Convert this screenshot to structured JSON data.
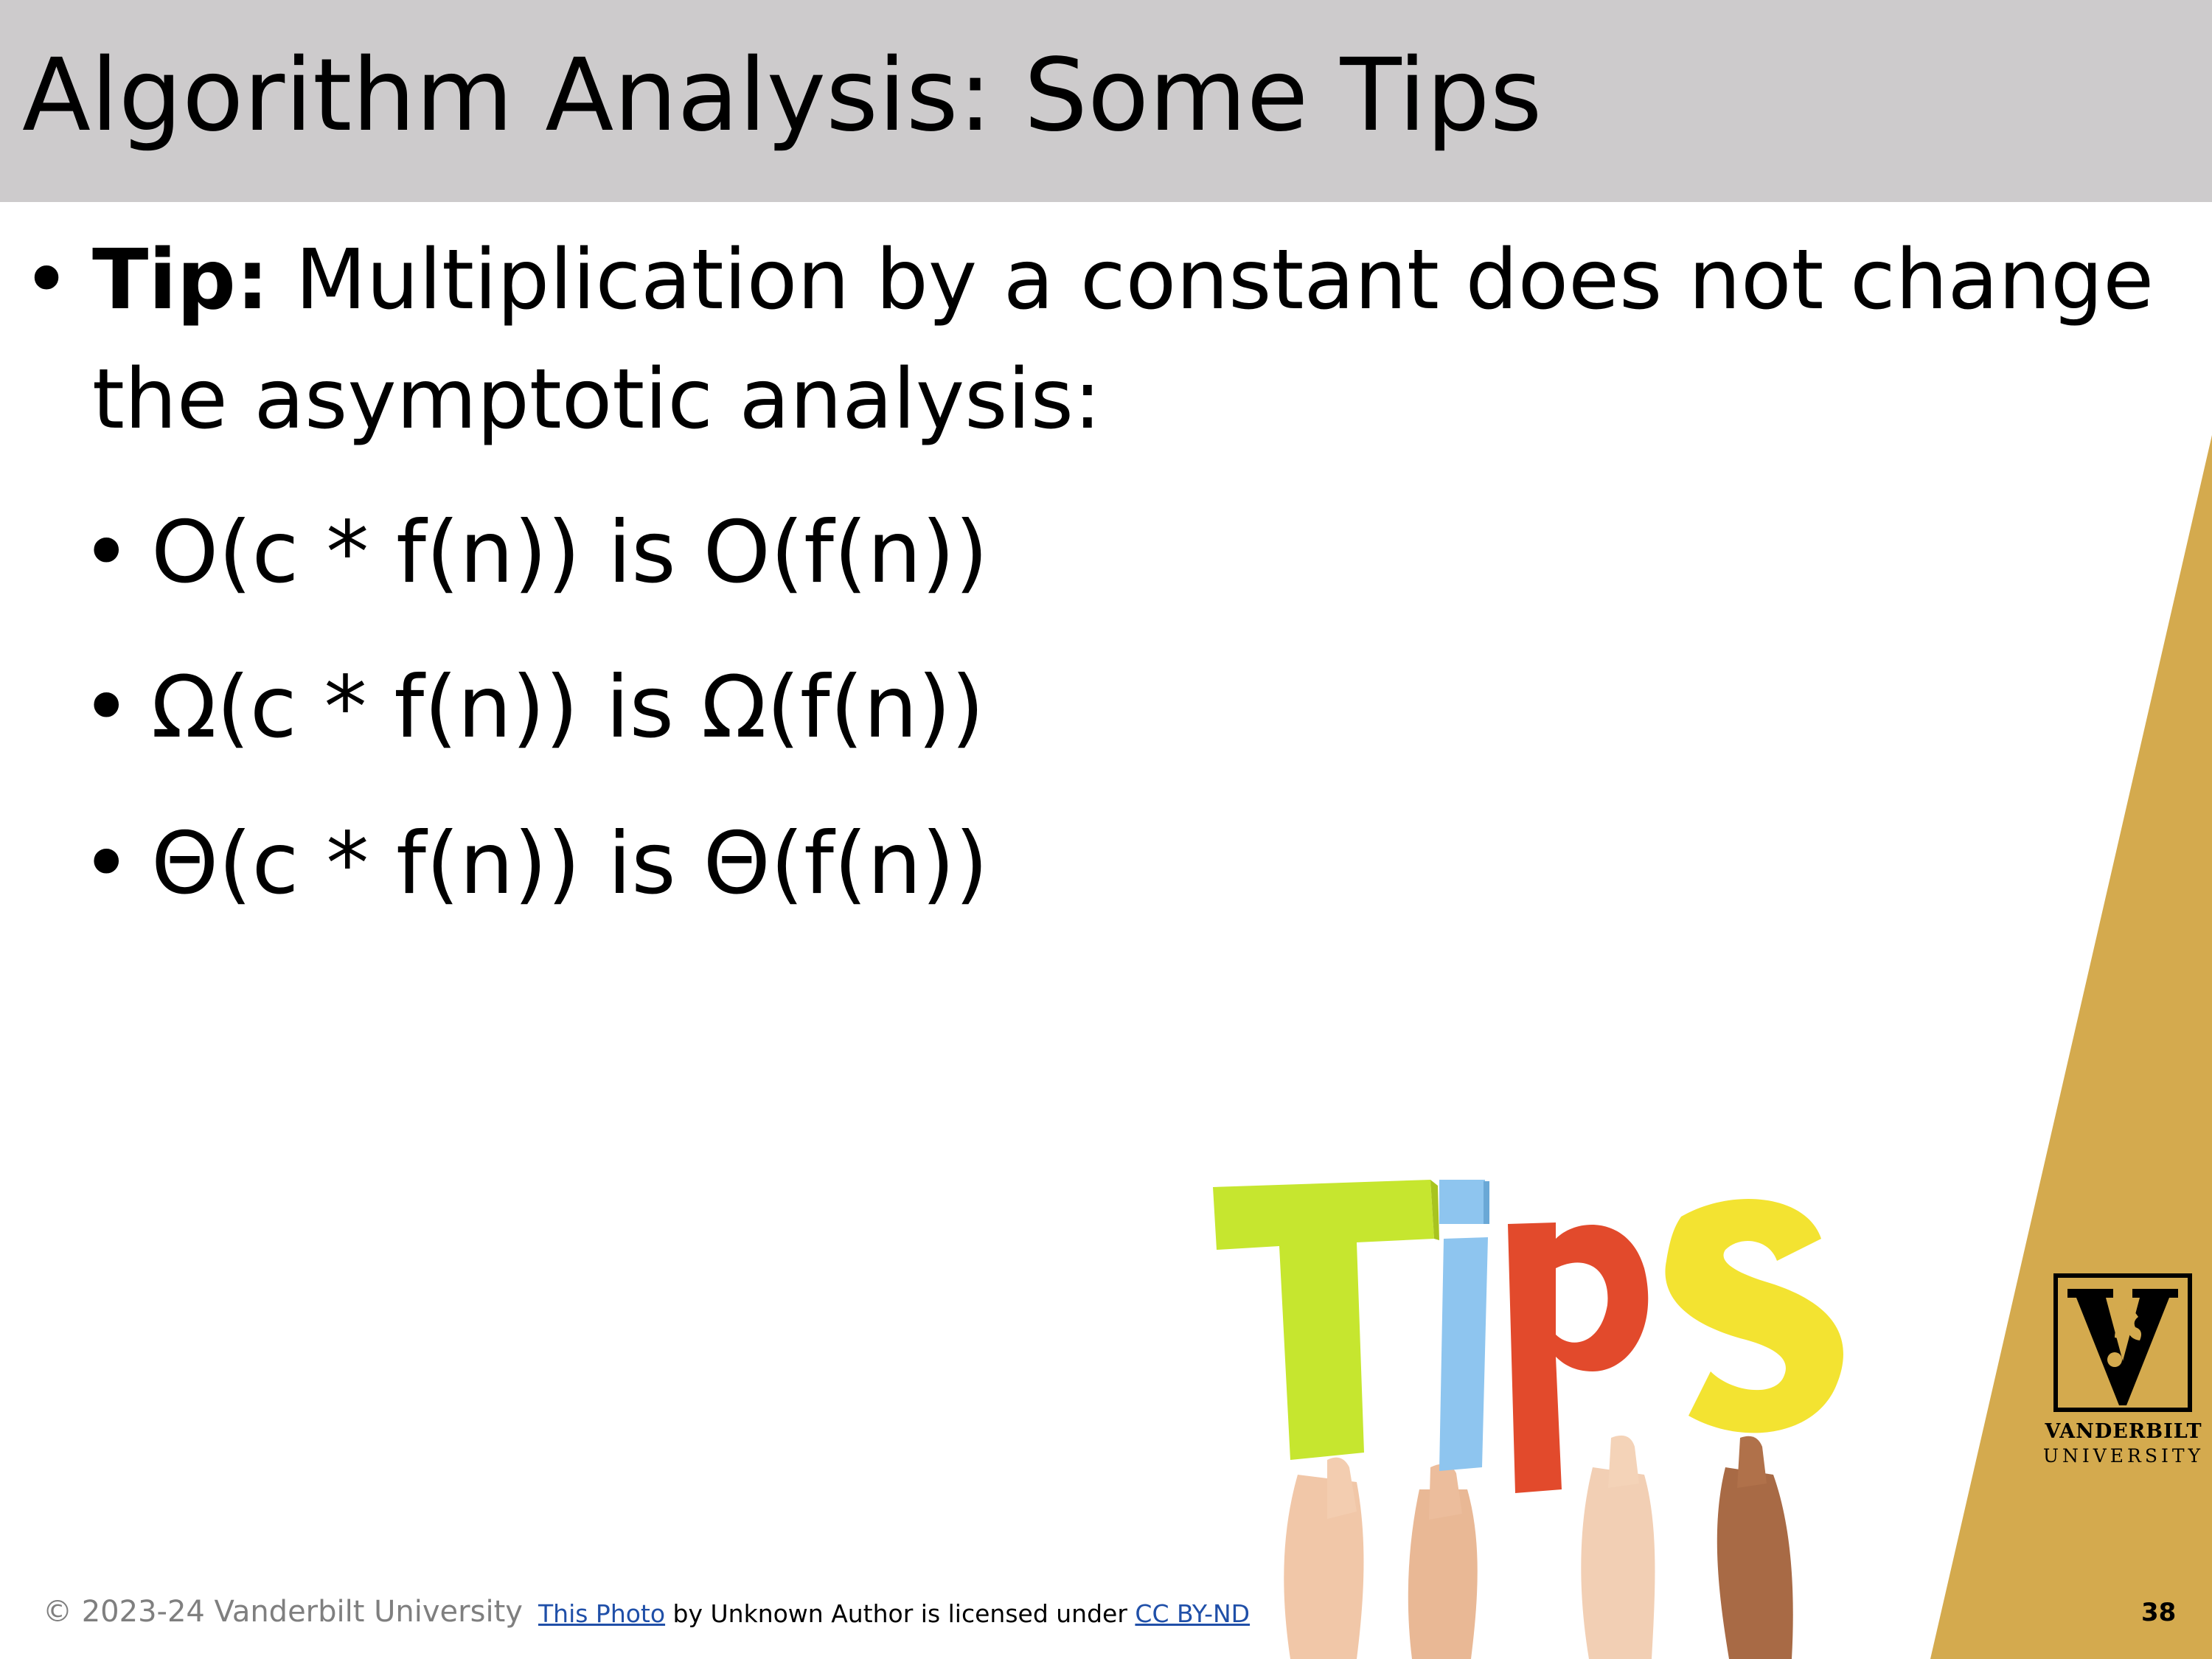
{
  "slide": {
    "title": "Algorithm Analysis: Some Tips",
    "bullet_main": {
      "bold_label": "Tip:",
      "text_line1": " Multiplication by a constant does not change",
      "text_line2": "the asymptotic analysis:"
    },
    "sub_bullets": [
      "O(c * f(n)) is O(f(n))",
      "Ω(c * f(n)) is Ω(f(n))",
      "Θ(c * f(n)) is Θ(f(n))"
    ],
    "bullet_glyph": "•",
    "image_letters": [
      "T",
      "i",
      "p",
      "s"
    ],
    "footer_copyright": "© 2023-24 Vanderbilt University",
    "credit": {
      "link1": "This Photo",
      "middle": " by Unknown Author is licensed under ",
      "link2": "CC BY-ND"
    },
    "page_number": "38",
    "logo_line1": "VANDERBILT",
    "logo_line2": "UNIVERSITY",
    "colors": {
      "title_bar": "#cdcbcc",
      "gold": "#d4aa4e",
      "footer_gray": "#7f7f7f",
      "link_blue": "#1f4fa8"
    }
  }
}
